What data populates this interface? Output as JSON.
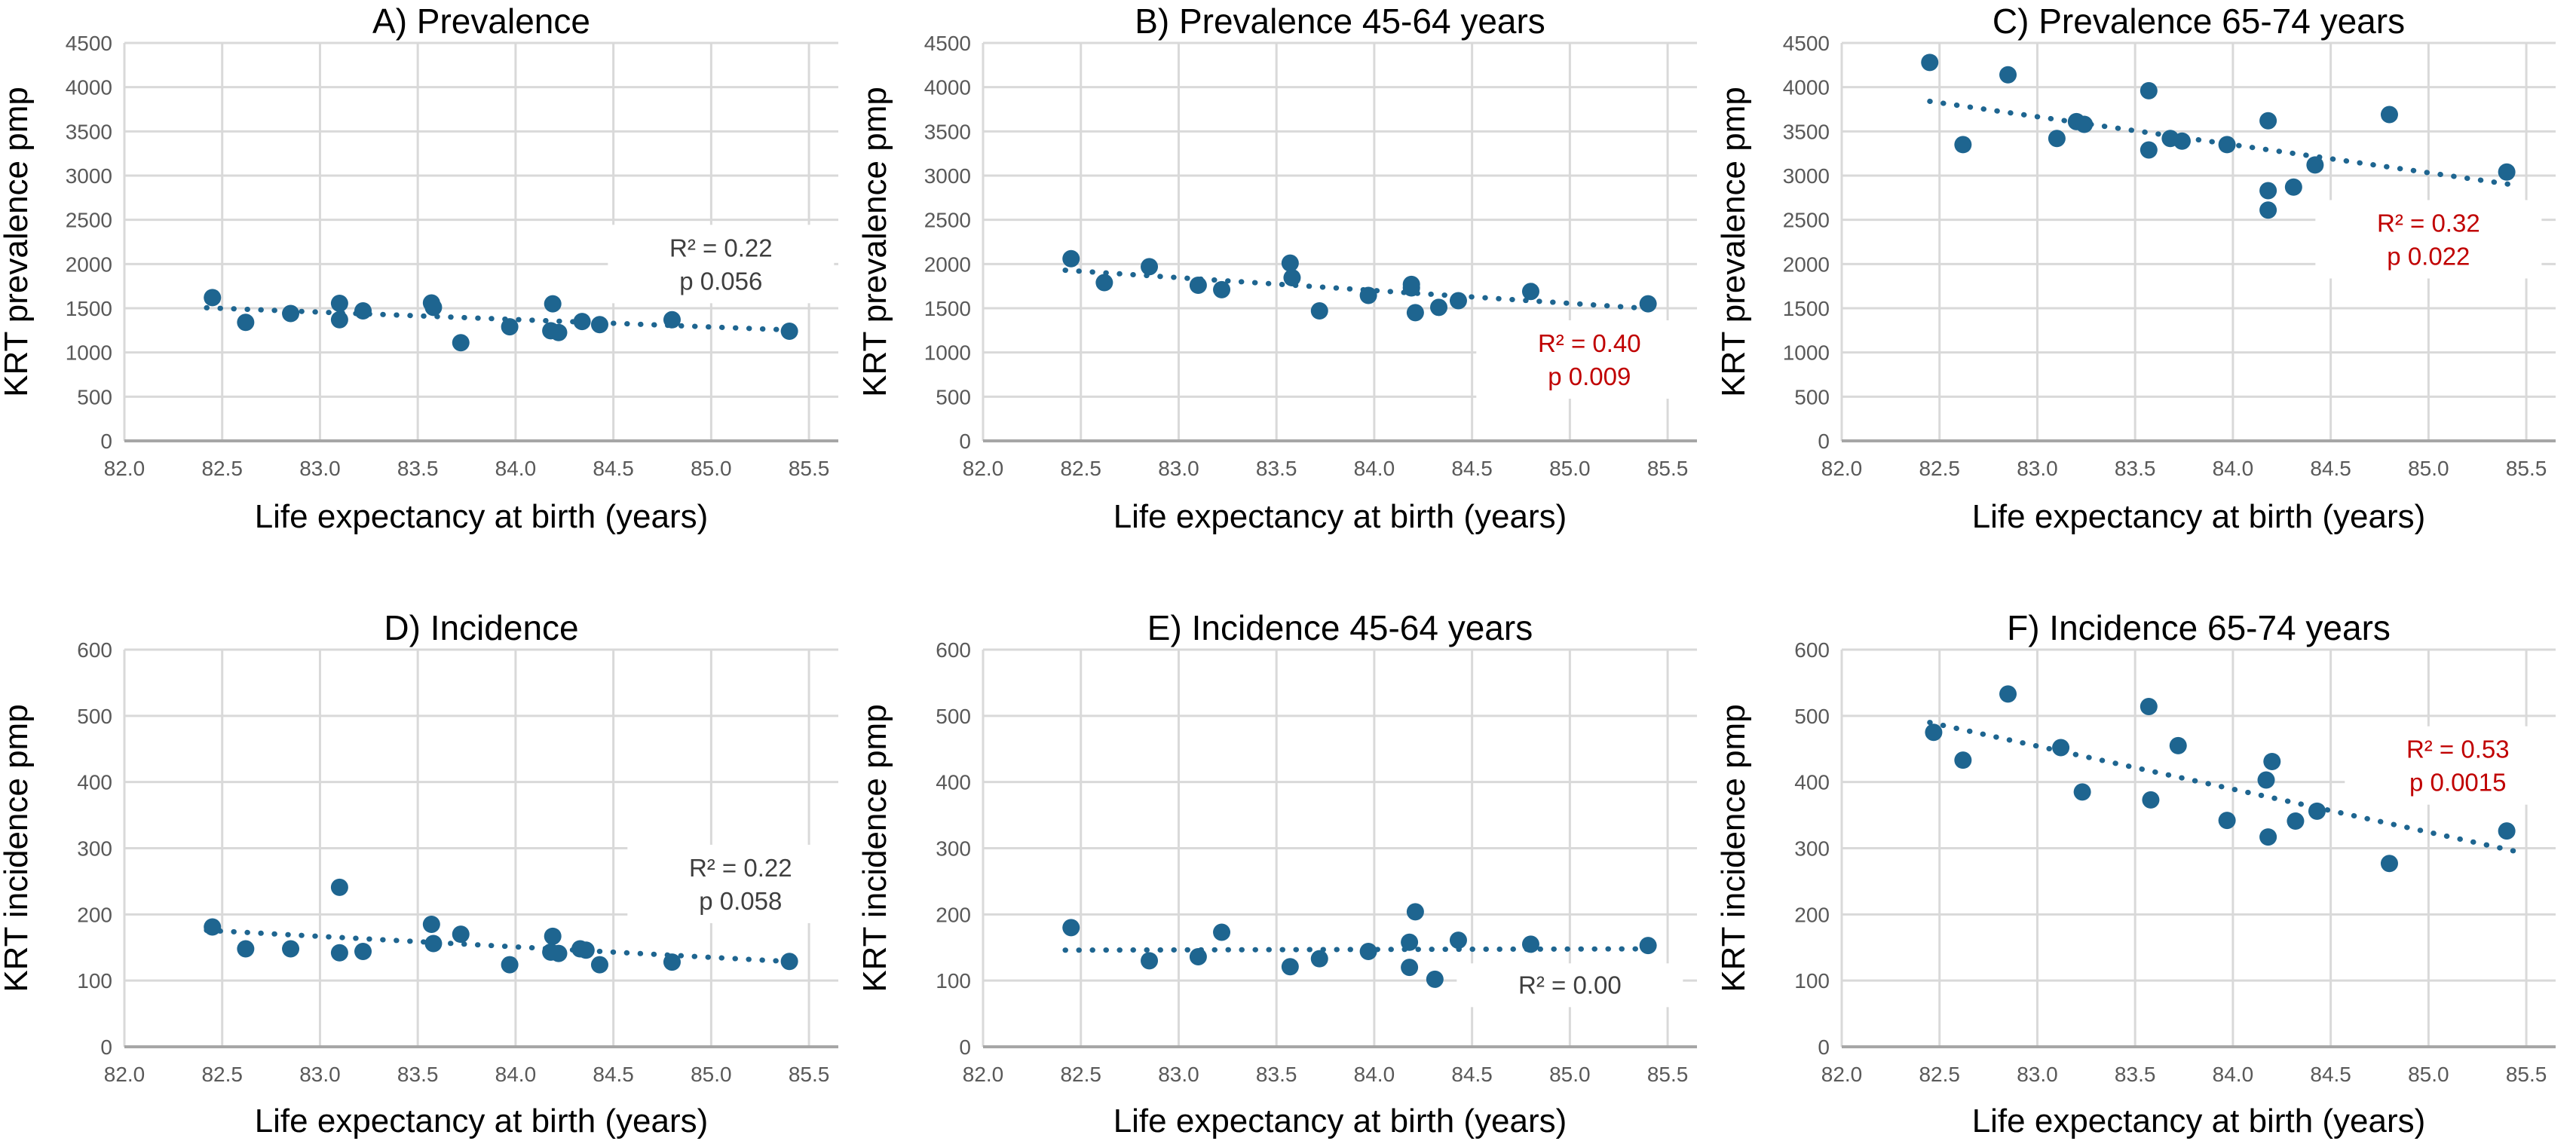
{
  "figure": {
    "background": "#ffffff",
    "shared_x_label": "Life expectancy at birth (years)",
    "colors": {
      "point": "#1e6590",
      "trendline": "#1e6590",
      "gridline": "#d9d9d9",
      "axis_line": "#a6a6a6",
      "tick_label": "#595959",
      "title_text": "#000000",
      "stats_gray": "#3f3f3f",
      "stats_red": "#c00000",
      "stats_box_bg": "#ffffff"
    }
  },
  "chart_data": [
    {
      "id": "A",
      "type": "scatter",
      "title": "A) Prevalence",
      "xlabel": "Life expectancy at birth (years)",
      "ylabel": "KRT prevalence pmp",
      "xlim": [
        82.0,
        85.65
      ],
      "ylim": [
        0,
        4500
      ],
      "xticks": [
        82.0,
        82.5,
        83.0,
        83.5,
        84.0,
        84.5,
        85.0,
        85.5
      ],
      "yticks": [
        0,
        500,
        1000,
        1500,
        2000,
        2500,
        3000,
        3500,
        4000,
        4500
      ],
      "grid": true,
      "legend": "none",
      "points": [
        [
          82.45,
          1620
        ],
        [
          82.62,
          1340
        ],
        [
          82.85,
          1440
        ],
        [
          83.1,
          1555
        ],
        [
          83.1,
          1370
        ],
        [
          83.22,
          1470
        ],
        [
          83.57,
          1560
        ],
        [
          83.58,
          1510
        ],
        [
          83.72,
          1110
        ],
        [
          83.97,
          1290
        ],
        [
          84.19,
          1550
        ],
        [
          84.18,
          1245
        ],
        [
          84.22,
          1225
        ],
        [
          84.34,
          1350
        ],
        [
          84.43,
          1315
        ],
        [
          84.8,
          1370
        ],
        [
          85.4,
          1240
        ]
      ],
      "trendline": {
        "x1": 82.42,
        "y1": 1505,
        "x2": 85.45,
        "y2": 1250
      },
      "stats": {
        "lines": [
          "R² = 0.22",
          "p 0.056"
        ],
        "color": "gray",
        "x": 85.05,
        "y": 2000
      }
    },
    {
      "id": "B",
      "type": "scatter",
      "title": "B) Prevalence 45-64 years",
      "xlabel": "Life expectancy at birth (years)",
      "ylabel": "KRT prevalence pmp",
      "xlim": [
        82.0,
        85.65
      ],
      "ylim": [
        0,
        4500
      ],
      "xticks": [
        82.0,
        82.5,
        83.0,
        83.5,
        84.0,
        84.5,
        85.0,
        85.5
      ],
      "yticks": [
        0,
        500,
        1000,
        1500,
        2000,
        2500,
        3000,
        3500,
        4000,
        4500
      ],
      "grid": true,
      "legend": "none",
      "points": [
        [
          82.45,
          2060
        ],
        [
          82.62,
          1790
        ],
        [
          82.85,
          1970
        ],
        [
          83.1,
          1760
        ],
        [
          83.22,
          1710
        ],
        [
          83.57,
          2010
        ],
        [
          83.58,
          1845
        ],
        [
          83.72,
          1470
        ],
        [
          83.97,
          1645
        ],
        [
          84.19,
          1770
        ],
        [
          84.19,
          1730
        ],
        [
          84.21,
          1450
        ],
        [
          84.33,
          1510
        ],
        [
          84.43,
          1585
        ],
        [
          84.8,
          1690
        ],
        [
          85.4,
          1550
        ]
      ],
      "trendline": {
        "x1": 82.42,
        "y1": 1930,
        "x2": 85.45,
        "y2": 1490
      },
      "stats": {
        "lines": [
          "R² = 0.40",
          "p 0.009"
        ],
        "color": "red",
        "x": 85.1,
        "y": 920
      }
    },
    {
      "id": "C",
      "type": "scatter",
      "title": "C) Prevalence 65-74 years",
      "xlabel": "Life expectancy at birth (years)",
      "ylabel": "KRT prevalence pmp",
      "xlim": [
        82.0,
        85.65
      ],
      "ylim": [
        0,
        4500
      ],
      "xticks": [
        82.0,
        82.5,
        83.0,
        83.5,
        84.0,
        84.5,
        85.0,
        85.5
      ],
      "yticks": [
        0,
        500,
        1000,
        1500,
        2000,
        2500,
        3000,
        3500,
        4000,
        4500
      ],
      "grid": true,
      "legend": "none",
      "points": [
        [
          82.45,
          4280
        ],
        [
          82.62,
          3350
        ],
        [
          82.85,
          4140
        ],
        [
          83.1,
          3420
        ],
        [
          83.2,
          3610
        ],
        [
          83.24,
          3580
        ],
        [
          83.57,
          3960
        ],
        [
          83.57,
          3290
        ],
        [
          83.68,
          3420
        ],
        [
          83.74,
          3390
        ],
        [
          83.97,
          3350
        ],
        [
          84.18,
          3620
        ],
        [
          84.18,
          2830
        ],
        [
          84.18,
          2610
        ],
        [
          84.31,
          2870
        ],
        [
          84.42,
          3120
        ],
        [
          84.8,
          3690
        ],
        [
          85.4,
          3040
        ]
      ],
      "trendline": {
        "x1": 82.45,
        "y1": 3840,
        "x2": 85.45,
        "y2": 2890
      },
      "stats": {
        "lines": [
          "R² = 0.32",
          "p 0.022"
        ],
        "color": "red",
        "x": 85.0,
        "y": 2280
      }
    },
    {
      "id": "D",
      "type": "scatter",
      "title": "D) Incidence",
      "xlabel": "Life expectancy at birth (years)",
      "ylabel": "KRT incidence pmp",
      "xlim": [
        82.0,
        85.65
      ],
      "ylim": [
        0,
        600
      ],
      "xticks": [
        82.0,
        82.5,
        83.0,
        83.5,
        84.0,
        84.5,
        85.0,
        85.5
      ],
      "yticks": [
        0,
        100,
        200,
        300,
        400,
        500,
        600
      ],
      "grid": true,
      "legend": "none",
      "points": [
        [
          82.45,
          181
        ],
        [
          82.62,
          148
        ],
        [
          82.85,
          148
        ],
        [
          83.1,
          241
        ],
        [
          83.1,
          142
        ],
        [
          83.22,
          144
        ],
        [
          83.57,
          185
        ],
        [
          83.58,
          156
        ],
        [
          83.72,
          170
        ],
        [
          83.97,
          124
        ],
        [
          84.19,
          167
        ],
        [
          84.18,
          143
        ],
        [
          84.22,
          141
        ],
        [
          84.33,
          148
        ],
        [
          84.36,
          146
        ],
        [
          84.43,
          124
        ],
        [
          84.8,
          128
        ],
        [
          85.4,
          129
        ]
      ],
      "trendline": {
        "x1": 82.42,
        "y1": 176,
        "x2": 85.45,
        "y2": 128
      },
      "stats": {
        "lines": [
          "R² = 0.22",
          "p 0.058"
        ],
        "color": "gray",
        "x": 85.15,
        "y": 246
      }
    },
    {
      "id": "E",
      "type": "scatter",
      "title": "E) Incidence 45-64 years",
      "xlabel": "Life expectancy at birth (years)",
      "ylabel": "KRT incidence pmp",
      "xlim": [
        82.0,
        85.65
      ],
      "ylim": [
        0,
        600
      ],
      "xticks": [
        82.0,
        82.5,
        83.0,
        83.5,
        84.0,
        84.5,
        85.0,
        85.5
      ],
      "yticks": [
        0,
        100,
        200,
        300,
        400,
        500,
        600
      ],
      "grid": true,
      "legend": "none",
      "points": [
        [
          82.45,
          180
        ],
        [
          82.85,
          130
        ],
        [
          83.1,
          136
        ],
        [
          83.22,
          173
        ],
        [
          83.57,
          121
        ],
        [
          83.72,
          133
        ],
        [
          83.97,
          144
        ],
        [
          84.18,
          158
        ],
        [
          84.18,
          120
        ],
        [
          84.21,
          204
        ],
        [
          84.31,
          102
        ],
        [
          84.43,
          161
        ],
        [
          84.8,
          155
        ],
        [
          85.4,
          153
        ]
      ],
      "trendline": {
        "x1": 82.42,
        "y1": 146,
        "x2": 85.45,
        "y2": 148
      },
      "stats": {
        "lines": [
          "R² = 0.00"
        ],
        "color": "gray",
        "x": 85.0,
        "y": 93
      }
    },
    {
      "id": "F",
      "type": "scatter",
      "title": "F) Incidence 65-74 years",
      "xlabel": "Life expectancy at birth (years)",
      "ylabel": "KRT incidence pmp",
      "xlim": [
        82.0,
        85.65
      ],
      "ylim": [
        0,
        600
      ],
      "xticks": [
        82.0,
        82.5,
        83.0,
        83.5,
        84.0,
        84.5,
        85.0,
        85.5
      ],
      "yticks": [
        0,
        100,
        200,
        300,
        400,
        500,
        600
      ],
      "grid": true,
      "legend": "none",
      "points": [
        [
          82.47,
          475
        ],
        [
          82.62,
          433
        ],
        [
          82.85,
          533
        ],
        [
          83.12,
          452
        ],
        [
          83.23,
          385
        ],
        [
          83.57,
          514
        ],
        [
          83.58,
          373
        ],
        [
          83.72,
          455
        ],
        [
          83.97,
          342
        ],
        [
          84.17,
          403
        ],
        [
          84.2,
          431
        ],
        [
          84.18,
          317
        ],
        [
          84.32,
          341
        ],
        [
          84.43,
          356
        ],
        [
          84.8,
          277
        ],
        [
          85.4,
          326
        ]
      ],
      "trendline": {
        "x1": 82.45,
        "y1": 490,
        "x2": 85.45,
        "y2": 295
      },
      "stats": {
        "lines": [
          "R² = 0.53",
          "p 0.0015"
        ],
        "color": "red",
        "x": 85.15,
        "y": 425
      }
    }
  ]
}
